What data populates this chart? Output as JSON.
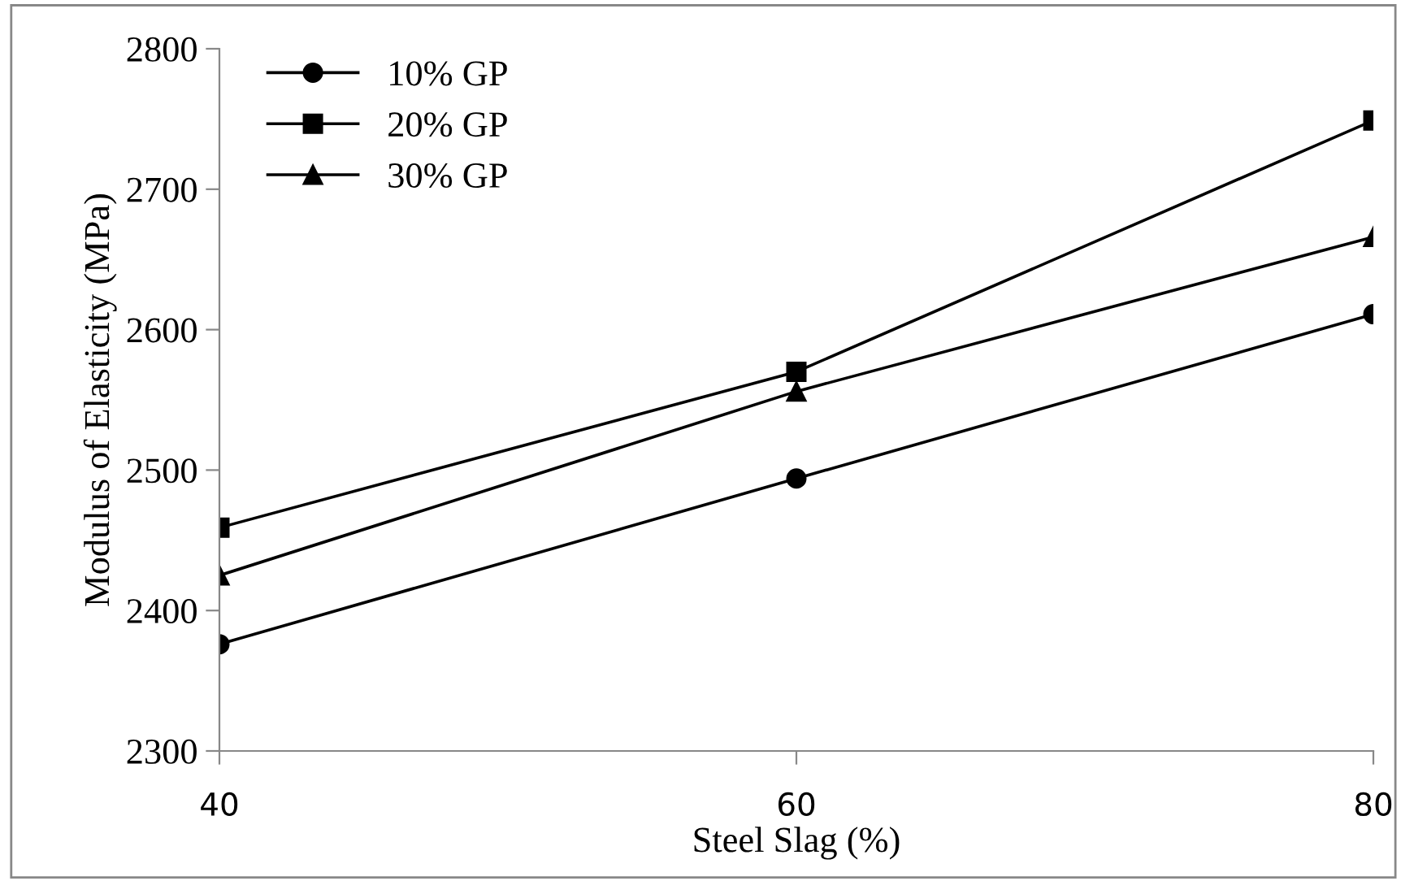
{
  "chart_data": {
    "type": "line",
    "xlabel": "Steel Slag (%)",
    "ylabel": "Modulus of Elasticity (MPa)",
    "x": [
      40,
      60,
      80
    ],
    "xlim": [
      40,
      80
    ],
    "xticks": [
      40,
      60,
      80
    ],
    "ylim": [
      2300,
      2800
    ],
    "yticks": [
      2300,
      2400,
      2500,
      2600,
      2700,
      2800
    ],
    "grid": false,
    "legend": "top left",
    "line_style": "solid",
    "series": [
      {
        "name": "10% GP",
        "color": "#000000",
        "marker": "circle",
        "values": [
          2376,
          2494,
          2611
        ]
      },
      {
        "name": "20% GP",
        "color": "#000000",
        "marker": "square",
        "values": [
          2459,
          2570,
          2749
        ]
      },
      {
        "name": "30% GP",
        "color": "#000000",
        "marker": "triangle",
        "values": [
          2425,
          2556,
          2666
        ]
      }
    ]
  }
}
